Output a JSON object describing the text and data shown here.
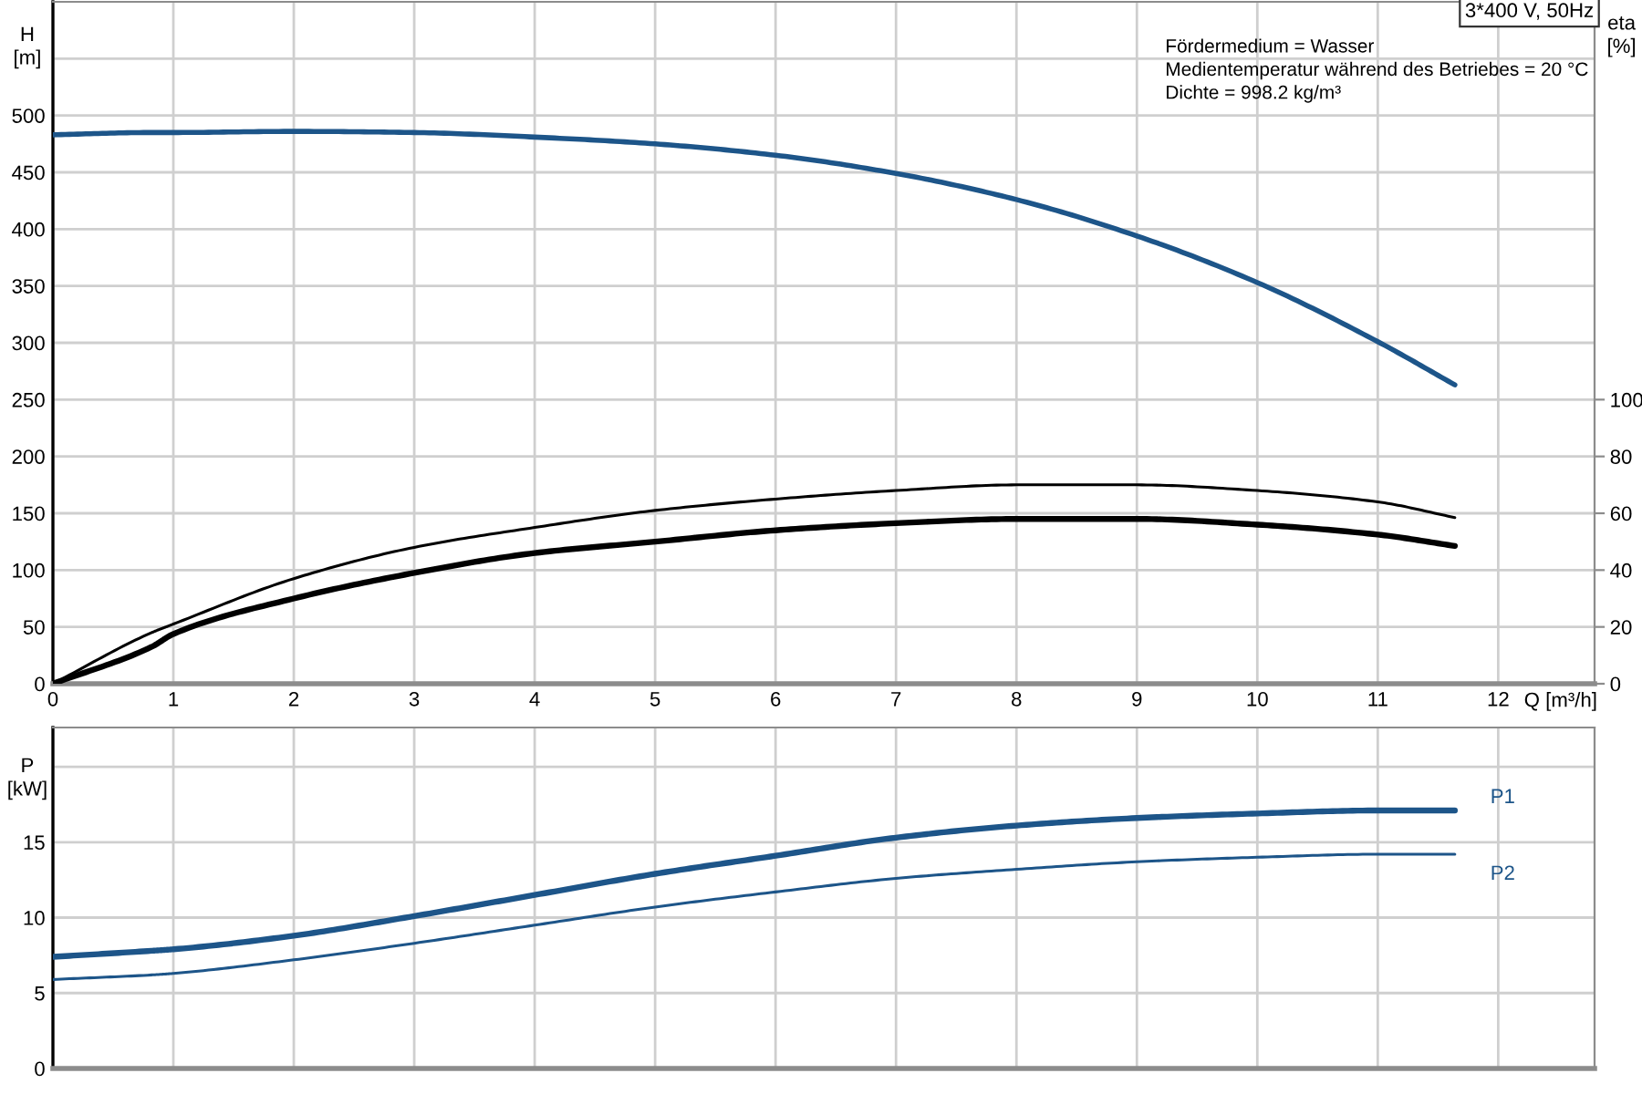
{
  "chart_data": [
    {
      "type": "line",
      "title": "3*400 V, 50Hz",
      "xlabel": "Q [m³/h]",
      "ylabel": "H\n[m]",
      "y2label": "eta\n[%]",
      "annotations": [
        "Fördermedium = Wasser",
        "Medientemperatur während des Betriebes = 20 °C",
        "Dichte = 998.2 kg/m³"
      ],
      "x": [
        0,
        0.82,
        1,
        2,
        3,
        4,
        5,
        6,
        7,
        8,
        9,
        10,
        11,
        11.64
      ],
      "series": [
        {
          "color": "#1d5589",
          "values": [
            483,
            485,
            485,
            486,
            485,
            481,
            475,
            465,
            449,
            426,
            394,
            353,
            301,
            263
          ]
        },
        {
          "color": "#000000",
          "axis": "y2",
          "values": [
            0,
            18,
            21,
            37,
            48,
            55,
            61,
            65,
            68,
            70,
            70,
            68,
            64,
            58.5
          ]
        },
        {
          "color": "#000000",
          "axis": "y2",
          "values": [
            0,
            13,
            17.5,
            30,
            39,
            46,
            50,
            54,
            56.5,
            58,
            58,
            56,
            52.5,
            48.5
          ]
        }
      ],
      "xlim": [
        0,
        12.8
      ],
      "xticks": [
        0,
        1,
        2,
        3,
        4,
        5,
        6,
        7,
        8,
        9,
        10,
        11,
        12
      ],
      "ylim": [
        0,
        600
      ],
      "yticks": [
        0,
        50,
        100,
        150,
        200,
        250,
        300,
        350,
        400,
        450,
        500,
        {
          "value": 550,
          "label": null
        }
      ],
      "y2lim": [
        0,
        240
      ],
      "y2ticks": [
        0,
        20,
        40,
        60,
        80,
        100
      ],
      "grid": true,
      "marker": "none",
      "line_style": "solid"
    },
    {
      "type": "line",
      "ylabel": "P\n[kW]",
      "x": [
        0,
        0.82,
        1,
        2,
        3,
        4,
        5,
        6,
        7,
        8,
        9,
        10,
        11,
        11.64
      ],
      "series": [
        {
          "name": "P1",
          "color": "#1d5589",
          "values": [
            7.4,
            7.8,
            7.9,
            8.8,
            10.1,
            11.5,
            12.9,
            14.1,
            15.3,
            16.1,
            16.6,
            16.9,
            17.1,
            17.1
          ]
        },
        {
          "name": "P2",
          "color": "#1d5589",
          "values": [
            5.9,
            6.2,
            6.3,
            7.2,
            8.3,
            9.5,
            10.7,
            11.7,
            12.6,
            13.2,
            13.7,
            14.0,
            14.2,
            14.2
          ]
        }
      ],
      "xlim": [
        0,
        12.8
      ],
      "xticks": [
        0,
        1,
        2,
        3,
        4,
        5,
        6,
        7,
        8,
        9,
        10,
        11,
        12
      ],
      "ylim": [
        0,
        22.6
      ],
      "yticks": [
        0,
        5,
        10,
        15,
        {
          "value": 20,
          "label": null
        }
      ],
      "tick_labels": "y",
      "grid": true,
      "marker": "none",
      "line_style": "solid"
    }
  ]
}
